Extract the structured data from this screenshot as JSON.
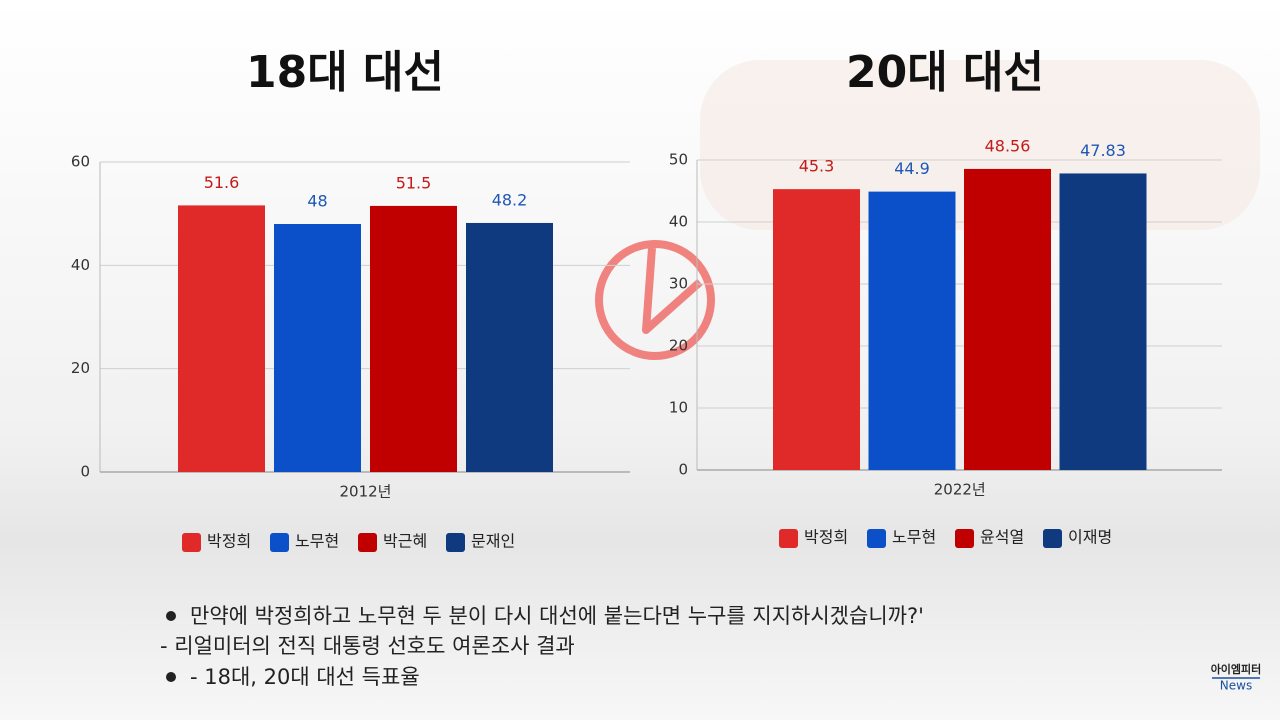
{
  "chart_data": [
    {
      "type": "bar",
      "title": "18대 대선",
      "categories": [
        "2012년"
      ],
      "series": [
        {
          "name": "박정희",
          "color": "#e02a2a",
          "values": [
            51.6
          ]
        },
        {
          "name": "노무현",
          "color": "#0b50c8",
          "values": [
            48
          ]
        },
        {
          "name": "박근혜",
          "color": "#c00000",
          "values": [
            51.5
          ]
        },
        {
          "name": "문재인",
          "color": "#0f3a80",
          "values": [
            48.2
          ]
        }
      ],
      "ylim": [
        0,
        60
      ],
      "yticks": [
        0,
        20,
        40,
        60
      ],
      "grid": true,
      "legend": "bottom"
    },
    {
      "type": "bar",
      "title": "20대 대선",
      "categories": [
        "2022년"
      ],
      "series": [
        {
          "name": "박정희",
          "color": "#e02a2a",
          "values": [
            45.3
          ]
        },
        {
          "name": "노무현",
          "color": "#0b50c8",
          "values": [
            44.9
          ]
        },
        {
          "name": "윤석열",
          "color": "#c00000",
          "values": [
            48.56
          ]
        },
        {
          "name": "이재명",
          "color": "#0f3a80",
          "values": [
            47.83
          ]
        }
      ],
      "ylim": [
        0,
        50
      ],
      "yticks": [
        0,
        10,
        20,
        30,
        40,
        50
      ],
      "grid": true,
      "legend": "bottom"
    }
  ],
  "notes": [
    "만약에 박정희하고 노무현 두 분이 다시 대선에 붙는다면 누구를 지지하시겠습니까?'",
    "- 리얼미터의 전직 대통령 선호도 여론조사 결과",
    "- 18대, 20대 대선 득표율"
  ],
  "logo": {
    "line1": "아이엠피터",
    "line2": "News"
  }
}
